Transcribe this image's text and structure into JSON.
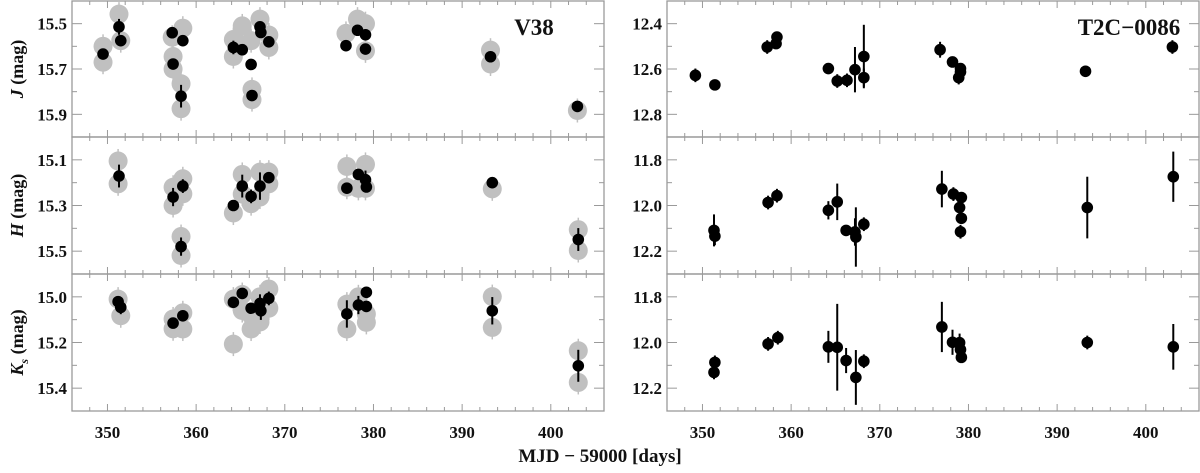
{
  "chart_data": [
    {
      "type": "scatter",
      "label": "V38",
      "ylabel_band": "J",
      "ylabel_sub": "",
      "ylabel_unit": "(mag)",
      "xlim": [
        346,
        406
      ],
      "ylim": [
        15.4,
        16.0
      ],
      "y_inverted": true,
      "yticks": [
        15.5,
        15.7,
        15.9
      ],
      "yminor": [
        15.6,
        15.8
      ],
      "series": [
        {
          "color": "#000000",
          "points": [
            [
              349.5,
              15.634,
              0.02
            ],
            [
              351.3,
              15.514,
              0.035
            ],
            [
              351.5,
              15.575,
              0.02
            ],
            [
              357.3,
              15.54,
              0.01
            ],
            [
              358.5,
              15.575,
              0.01
            ],
            [
              357.4,
              15.678,
              0.02
            ],
            [
              358.3,
              15.82,
              0.05
            ],
            [
              364.2,
              15.605,
              0.03
            ],
            [
              365.2,
              15.615,
              0.01
            ],
            [
              366.2,
              15.68,
              0.01
            ],
            [
              366.3,
              15.817,
              0.015
            ],
            [
              367.2,
              15.514,
              0.02
            ],
            [
              367.3,
              15.539,
              0.01
            ],
            [
              368.2,
              15.58,
              0.02
            ],
            [
              376.9,
              15.597,
              0.01
            ],
            [
              378.2,
              15.529,
              0.01
            ],
            [
              379.1,
              15.549,
              0.025
            ],
            [
              379.1,
              15.612,
              0.01
            ],
            [
              393.2,
              15.646,
              0.02
            ],
            [
              403.0,
              15.865,
              0.01
            ]
          ]
        },
        {
          "color": "#c0c0c0",
          "points": [
            [
              349.5,
              15.6
            ],
            [
              349.5,
              15.67
            ],
            [
              351.3,
              15.458
            ],
            [
              351.5,
              15.575
            ],
            [
              357.3,
              15.56
            ],
            [
              358.5,
              15.52
            ],
            [
              357.4,
              15.645
            ],
            [
              357.4,
              15.7
            ],
            [
              358.3,
              15.765
            ],
            [
              358.3,
              15.875
            ],
            [
              364.2,
              15.57
            ],
            [
              364.2,
              15.645
            ],
            [
              365.2,
              15.51
            ],
            [
              366.2,
              15.575
            ],
            [
              366.3,
              15.79
            ],
            [
              366.3,
              15.835
            ],
            [
              367.2,
              15.48
            ],
            [
              368.2,
              15.55
            ],
            [
              368.2,
              15.605
            ],
            [
              376.9,
              15.543
            ],
            [
              378.2,
              15.48
            ],
            [
              379.1,
              15.5
            ],
            [
              379.1,
              15.62
            ],
            [
              393.2,
              15.617
            ],
            [
              393.2,
              15.678
            ],
            [
              403.0,
              15.883
            ]
          ]
        }
      ]
    },
    {
      "type": "scatter",
      "label": "T2C−0086",
      "ylabel_band": "",
      "ylabel_sub": "",
      "ylabel_unit": "",
      "xlim": [
        346,
        406
      ],
      "ylim": [
        12.3,
        12.9
      ],
      "y_inverted": true,
      "yticks": [
        12.4,
        12.6,
        12.8
      ],
      "yminor": [
        12.5,
        12.7
      ],
      "series": [
        {
          "color": "#000000",
          "points": [
            [
              349.2,
              12.628,
              0.03
            ],
            [
              351.4,
              12.67,
              0.02
            ],
            [
              357.3,
              12.503,
              0.03
            ],
            [
              358.3,
              12.488,
              0.02
            ],
            [
              358.4,
              12.459,
              0.02
            ],
            [
              364.2,
              12.598,
              0.02
            ],
            [
              365.2,
              12.653,
              0.03
            ],
            [
              366.3,
              12.65,
              0.03
            ],
            [
              367.2,
              12.603,
              0.1
            ],
            [
              368.2,
              12.545,
              0.14
            ],
            [
              368.2,
              12.638,
              0.04
            ],
            [
              376.8,
              12.515,
              0.035
            ],
            [
              378.2,
              12.569,
              0.02
            ],
            [
              378.9,
              12.638,
              0.03
            ],
            [
              379.1,
              12.598,
              0.02
            ],
            [
              379.1,
              12.613,
              0.02
            ],
            [
              393.2,
              12.61,
              0.025
            ],
            [
              403.0,
              12.503,
              0.03
            ]
          ]
        }
      ]
    },
    {
      "type": "scatter",
      "label": "",
      "ylabel_band": "H",
      "ylabel_sub": "",
      "ylabel_unit": "(mag)",
      "xlim": [
        346,
        406
      ],
      "ylim": [
        15.0,
        15.6
      ],
      "y_inverted": true,
      "yticks": [
        15.1,
        15.3,
        15.5
      ],
      "yminor": [
        15.2,
        15.4
      ],
      "series": [
        {
          "color": "#000000",
          "points": [
            [
              351.3,
              15.171,
              0.05
            ],
            [
              357.4,
              15.263,
              0.04
            ],
            [
              358.5,
              15.215,
              0.03
            ],
            [
              358.3,
              15.48,
              0.04
            ],
            [
              364.2,
              15.3,
              0.01
            ],
            [
              365.2,
              15.215,
              0.05
            ],
            [
              366.2,
              15.26,
              0.03
            ],
            [
              367.2,
              15.215,
              0.06
            ],
            [
              368.2,
              15.178,
              0.01
            ],
            [
              377.0,
              15.224,
              0.01
            ],
            [
              378.3,
              15.164,
              0.01
            ],
            [
              379.1,
              15.187,
              0.04
            ],
            [
              379.2,
              15.219,
              0.01
            ],
            [
              393.4,
              15.2,
              0.01
            ],
            [
              403.1,
              15.449,
              0.05
            ]
          ]
        },
        {
          "color": "#c0c0c0",
          "points": [
            [
              351.2,
              15.105
            ],
            [
              351.2,
              15.205
            ],
            [
              357.4,
              15.22
            ],
            [
              357.4,
              15.3
            ],
            [
              358.5,
              15.183
            ],
            [
              358.5,
              15.249
            ],
            [
              358.3,
              15.436
            ],
            [
              358.3,
              15.519
            ],
            [
              364.2,
              15.333
            ],
            [
              365.2,
              15.164
            ],
            [
              365.2,
              15.25
            ],
            [
              366.2,
              15.292
            ],
            [
              367.2,
              15.154
            ],
            [
              367.2,
              15.263
            ],
            [
              368.2,
              15.154
            ],
            [
              368.2,
              15.205
            ],
            [
              377.0,
              15.129
            ],
            [
              377.0,
              15.22
            ],
            [
              379.1,
              15.12
            ],
            [
              378.3,
              15.225
            ],
            [
              379.1,
              15.225
            ],
            [
              393.4,
              15.227
            ],
            [
              403.1,
              15.406
            ],
            [
              403.1,
              15.497
            ]
          ]
        }
      ]
    },
    {
      "type": "scatter",
      "label": "",
      "ylabel_band": "",
      "ylabel_sub": "",
      "ylabel_unit": "",
      "xlim": [
        346,
        406
      ],
      "ylim": [
        11.7,
        12.3
      ],
      "y_inverted": true,
      "yticks": [
        11.8,
        12.0,
        12.2
      ],
      "yminor": [
        11.9,
        12.1
      ],
      "series": [
        {
          "color": "#000000",
          "points": [
            [
              351.3,
              12.109,
              0.07
            ],
            [
              351.4,
              12.134,
              0.04
            ],
            [
              357.4,
              11.987,
              0.03
            ],
            [
              358.4,
              11.957,
              0.03
            ],
            [
              364.2,
              12.021,
              0.04
            ],
            [
              365.2,
              11.984,
              0.08
            ],
            [
              366.2,
              12.109,
              0.02
            ],
            [
              367.2,
              12.116,
              0.06
            ],
            [
              367.3,
              12.138,
              0.13
            ],
            [
              368.2,
              12.082,
              0.03
            ],
            [
              377.0,
              11.928,
              0.08
            ],
            [
              378.3,
              11.95,
              0.03
            ],
            [
              379.2,
              11.965,
              0.02
            ],
            [
              379.0,
              12.009,
              0.02
            ],
            [
              379.2,
              12.056,
              0.02
            ],
            [
              379.1,
              12.115,
              0.03
            ],
            [
              393.4,
              12.009,
              0.135
            ],
            [
              403.1,
              11.874,
              0.11
            ]
          ]
        }
      ]
    },
    {
      "type": "scatter",
      "label": "",
      "ylabel_band": "K",
      "ylabel_sub": "s",
      "ylabel_unit": "(mag)",
      "xlim": [
        346,
        406
      ],
      "ylim": [
        14.9,
        15.5
      ],
      "y_inverted": true,
      "yticks": [
        15.0,
        15.2,
        15.4
      ],
      "yminor": [
        15.1,
        15.3
      ],
      "series": [
        {
          "color": "#000000",
          "points": [
            [
              351.2,
              15.021,
              0.02
            ],
            [
              351.5,
              15.046,
              0.03
            ],
            [
              357.4,
              15.115,
              0.02
            ],
            [
              358.5,
              15.083,
              0.01
            ],
            [
              364.2,
              15.024,
              0.01
            ],
            [
              365.2,
              14.985,
              0.01
            ],
            [
              366.2,
              15.05,
              0.01
            ],
            [
              367.2,
              15.029,
              0.04
            ],
            [
              367.3,
              15.061,
              0.04
            ],
            [
              368.2,
              15.007,
              0.03
            ],
            [
              377.0,
              15.075,
              0.06
            ],
            [
              378.3,
              15.036,
              0.04
            ],
            [
              379.2,
              14.98,
              0.01
            ],
            [
              379.2,
              15.042,
              0.01
            ],
            [
              393.4,
              15.061,
              0.06
            ],
            [
              403.1,
              15.302,
              0.07
            ]
          ]
        },
        {
          "color": "#c0c0c0",
          "points": [
            [
              351.2,
              15.01
            ],
            [
              351.5,
              15.083
            ],
            [
              357.4,
              15.097
            ],
            [
              357.4,
              15.14
            ],
            [
              358.5,
              15.141
            ],
            [
              358.5,
              15.07
            ],
            [
              364.2,
              15.01
            ],
            [
              364.2,
              15.207
            ],
            [
              365.2,
              15.06
            ],
            [
              365.2,
              14.99
            ],
            [
              366.2,
              15.141
            ],
            [
              366.2,
              15.08
            ],
            [
              367.2,
              15.0
            ],
            [
              367.2,
              15.11
            ],
            [
              368.2,
              14.966
            ],
            [
              368.2,
              15.05
            ],
            [
              377.0,
              15.032
            ],
            [
              377.0,
              15.141
            ],
            [
              378.3,
              15.0
            ],
            [
              379.2,
              15.075
            ],
            [
              379.2,
              15.112
            ],
            [
              393.4,
              14.999
            ],
            [
              393.4,
              15.134
            ],
            [
              403.1,
              15.236
            ],
            [
              403.1,
              15.375
            ]
          ]
        }
      ]
    },
    {
      "type": "scatter",
      "label": "",
      "ylabel_band": "",
      "ylabel_sub": "",
      "ylabel_unit": "",
      "xlim": [
        346,
        406
      ],
      "ylim": [
        11.7,
        12.3
      ],
      "y_inverted": true,
      "yticks": [
        11.8,
        12.0,
        12.2
      ],
      "yminor": [
        11.9,
        12.1
      ],
      "series": [
        {
          "color": "#000000",
          "points": [
            [
              351.3,
              12.131,
              0.03
            ],
            [
              351.4,
              12.087,
              0.03
            ],
            [
              357.4,
              12.006,
              0.03
            ],
            [
              358.5,
              11.979,
              0.03
            ],
            [
              364.2,
              12.019,
              0.07
            ],
            [
              365.2,
              12.021,
              0.19
            ],
            [
              366.2,
              12.079,
              0.055
            ],
            [
              367.3,
              12.153,
              0.12
            ],
            [
              368.2,
              12.082,
              0.03
            ],
            [
              377.0,
              11.932,
              0.11
            ],
            [
              378.2,
              11.999,
              0.055
            ],
            [
              379.0,
              12.001,
              0.04
            ],
            [
              379.1,
              12.031,
              0.02
            ],
            [
              379.2,
              12.065,
              0.02
            ],
            [
              393.4,
              12.0,
              0.03
            ],
            [
              403.1,
              12.019,
              0.1
            ]
          ]
        }
      ]
    }
  ],
  "xticks": [
    350,
    360,
    370,
    380,
    390,
    400
  ],
  "xlabel": "MJD − 59000 [days]",
  "frame_color": "#9a9a9a"
}
